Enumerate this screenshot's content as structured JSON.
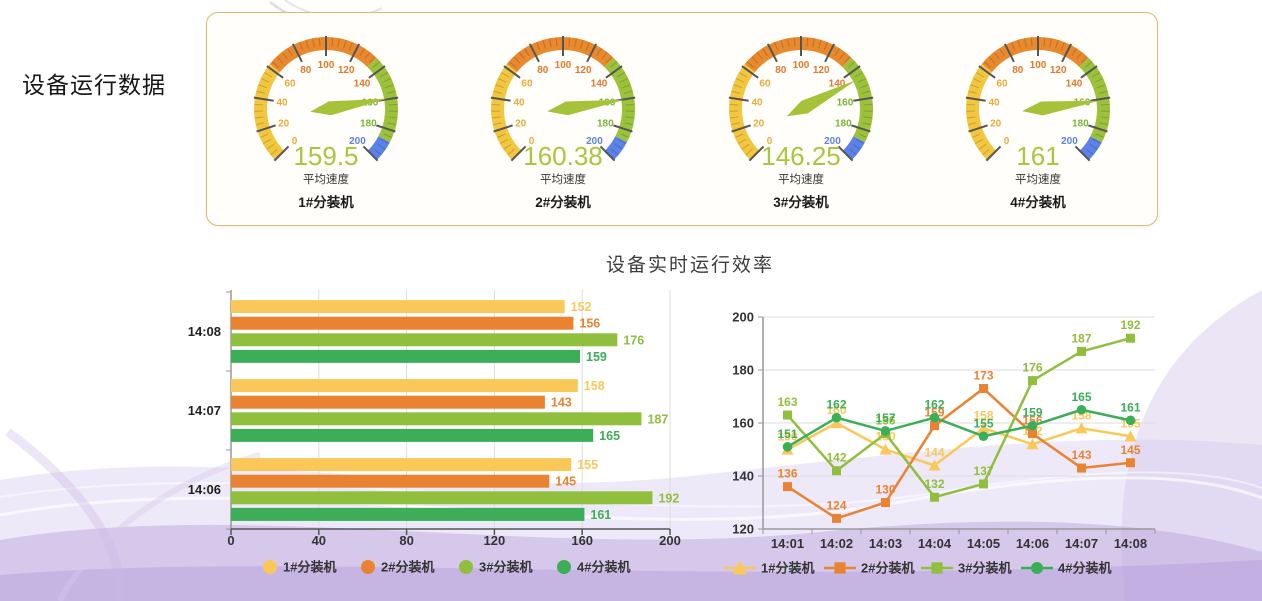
{
  "page": {
    "title": "设备运行数据"
  },
  "gauge_panel": {
    "unit_label": "平均速度",
    "min": 0,
    "max": 200,
    "major_tick_step": 20,
    "minor_tick_step": 4,
    "needle_color": "#a5c238",
    "value_color": "#a9c63f",
    "zones": [
      {
        "upto": 62,
        "color": "#f2c63e"
      },
      {
        "upto": 133,
        "color": "#e9892e"
      },
      {
        "upto": 187,
        "color": "#9cc23c"
      },
      {
        "upto": 200,
        "color": "#5c82e8"
      }
    ],
    "label_colors": [
      {
        "upto": 60,
        "color": "#edaa3a"
      },
      {
        "upto": 140,
        "color": "#e2792a"
      },
      {
        "upto": 180,
        "color": "#7cb437"
      },
      {
        "upto": 200,
        "color": "#5b82e7"
      }
    ],
    "items": [
      {
        "machine": "1#分装机",
        "value": "159.5"
      },
      {
        "machine": "2#分装机",
        "value": "160.38"
      },
      {
        "machine": "3#分装机",
        "value": "146.25"
      },
      {
        "machine": "4#分装机",
        "value": "161"
      }
    ]
  },
  "chart_data": [
    {
      "type": "bar",
      "orientation": "horizontal",
      "title": "",
      "categories": [
        "14:08",
        "14:07",
        "14:06"
      ],
      "series": [
        {
          "name": "1#分装机",
          "color": "#fac858",
          "values": [
            152,
            158,
            155
          ]
        },
        {
          "name": "2#分装机",
          "color": "#e98332",
          "values": [
            156,
            143,
            145
          ]
        },
        {
          "name": "3#分装机",
          "color": "#90be3d",
          "values": [
            176,
            187,
            192
          ]
        },
        {
          "name": "4#分装机",
          "color": "#3bae57",
          "values": [
            159,
            165,
            161
          ]
        }
      ],
      "xlim": [
        0,
        200
      ],
      "x_ticks": [
        0,
        40,
        80,
        120,
        160,
        200
      ],
      "grid": true,
      "legend_position": "bottom",
      "legend_marker": "circle"
    },
    {
      "type": "line",
      "title": "设备实时运行效率",
      "x": [
        "14:01",
        "14:02",
        "14:03",
        "14:04",
        "14:05",
        "14:06",
        "14:07",
        "14:08"
      ],
      "series": [
        {
          "name": "1#分装机",
          "color": "#fac858",
          "marker": "triangle",
          "values": [
            150,
            160,
            150,
            144,
            158,
            152,
            158,
            155
          ]
        },
        {
          "name": "2#分装机",
          "color": "#e98332",
          "marker": "square",
          "values": [
            136,
            124,
            130,
            159,
            173,
            156,
            143,
            145
          ]
        },
        {
          "name": "3#分装机",
          "color": "#90be3d",
          "marker": "square",
          "values": [
            163,
            142,
            156,
            132,
            137,
            176,
            187,
            192
          ]
        },
        {
          "name": "4#分装机",
          "color": "#3bae57",
          "marker": "circle",
          "values": [
            151,
            162,
            157,
            162,
            155,
            159,
            165,
            161
          ]
        }
      ],
      "ylim": [
        120,
        200
      ],
      "y_ticks": [
        120,
        140,
        160,
        180,
        200
      ],
      "grid": true,
      "legend_position": "bottom"
    }
  ]
}
